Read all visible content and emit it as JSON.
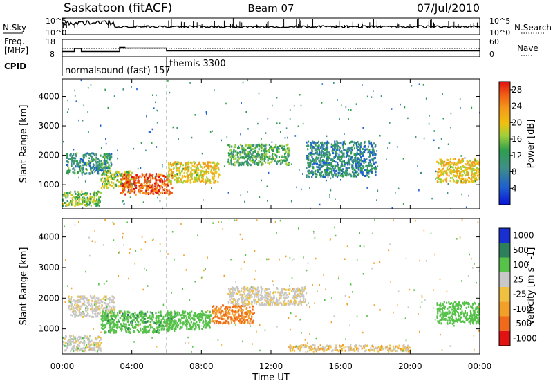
{
  "header": {
    "station": "Saskatoon (fitACF)",
    "beam": "Beam 07",
    "date": "07/Jul/2010"
  },
  "noise_panel": {
    "left_label": "N.Sky",
    "right_label": "N.Search",
    "left_ticks": [
      "10^5",
      "10^0"
    ],
    "right_ticks": [
      "10^5",
      "10^0"
    ]
  },
  "freq_panel": {
    "left_label_line1": "Freq.",
    "left_label_line2": "[MHz]",
    "right_label": "Nave",
    "left_ticks": [
      "18",
      "8"
    ],
    "right_ticks": [
      "60",
      "0"
    ],
    "freq_steps": [
      {
        "t": 0.0,
        "mhz": 11.0
      },
      {
        "t": 0.7,
        "mhz": 12.8
      },
      {
        "t": 1.1,
        "mhz": 11.0
      },
      {
        "t": 3.3,
        "mhz": 13.4
      },
      {
        "t": 3.6,
        "mhz": 13.0
      },
      {
        "t": 6.0,
        "mhz": 11.4
      },
      {
        "t": 24.0,
        "mhz": 11.4
      }
    ]
  },
  "cpid": {
    "label": "CPID",
    "programs": [
      {
        "name": "normalsound (fast) 157",
        "start_hour": 0
      },
      {
        "name": "themis 3300",
        "start_hour": 6
      }
    ]
  },
  "time_axis": {
    "label": "Time UT",
    "ticks": [
      "00:00",
      "04:00",
      "08:00",
      "12:00",
      "16:00",
      "20:00",
      "00:00"
    ],
    "range_hours": [
      0,
      24
    ]
  },
  "chart_data": [
    {
      "type": "heatmap",
      "name": "power",
      "ylabel": "Slant Range [km]",
      "yticks": [
        1000,
        2000,
        3000,
        4000
      ],
      "ylim": [
        180,
        4600
      ],
      "xlim_hours": [
        0,
        24
      ],
      "colorbar": {
        "label": "Power [dB]",
        "tick_labels": [
          "4",
          "8",
          "12",
          "16",
          "20",
          "24",
          "28"
        ],
        "range": [
          0,
          30
        ]
      },
      "echo_regions": [
        {
          "t0": 0.0,
          "t1": 2.2,
          "r0": 300,
          "r1": 800,
          "db": 14
        },
        {
          "t0": 0.2,
          "t1": 2.8,
          "r0": 1400,
          "r1": 2100,
          "db": 9
        },
        {
          "t0": 2.2,
          "t1": 4.0,
          "r0": 900,
          "r1": 1500,
          "db": 15
        },
        {
          "t0": 3.3,
          "t1": 6.3,
          "r0": 700,
          "r1": 1400,
          "db": 26
        },
        {
          "t0": 6.0,
          "t1": 9.0,
          "r0": 1100,
          "r1": 1800,
          "db": 18
        },
        {
          "t0": 9.5,
          "t1": 13.0,
          "r0": 1700,
          "r1": 2400,
          "db": 11
        },
        {
          "t0": 14.0,
          "t1": 18.0,
          "r0": 1300,
          "r1": 2500,
          "db": 8
        },
        {
          "t0": 21.5,
          "t1": 24.0,
          "r0": 1100,
          "r1": 1900,
          "db": 19
        }
      ]
    },
    {
      "type": "heatmap",
      "name": "velocity",
      "ylabel": "Slant Range [km]",
      "yticks": [
        1000,
        2000,
        3000,
        4000
      ],
      "ylim": [
        180,
        4600
      ],
      "xlim_hours": [
        0,
        24
      ],
      "colorbar": {
        "label": "Velocity [m s^-1]",
        "tick_labels": [
          "1000",
          "500",
          "100",
          "25",
          "-25",
          "-100",
          "-500",
          "-1000"
        ]
      },
      "echo_regions": [
        {
          "t0": 0.0,
          "t1": 2.2,
          "r0": 300,
          "r1": 800,
          "vel": 10
        },
        {
          "t0": 0.3,
          "t1": 3.0,
          "r0": 1400,
          "r1": 2100,
          "vel": 5
        },
        {
          "t0": 2.2,
          "t1": 6.5,
          "r0": 900,
          "r1": 1600,
          "vel": 250
        },
        {
          "t0": 6.0,
          "t1": 8.5,
          "r0": 1000,
          "r1": 1600,
          "vel": 150
        },
        {
          "t0": 8.5,
          "t1": 11.0,
          "r0": 1200,
          "r1": 1800,
          "vel": -300
        },
        {
          "t0": 9.5,
          "t1": 14.0,
          "r0": 1800,
          "r1": 2400,
          "vel": 0
        },
        {
          "t0": 13.0,
          "t1": 20.0,
          "r0": 300,
          "r1": 500,
          "vel": -40
        },
        {
          "t0": 21.5,
          "t1": 24.0,
          "r0": 1200,
          "r1": 1900,
          "vel": 200
        }
      ]
    }
  ],
  "colors": {
    "power_scale": [
      "#0a14d8",
      "#1e5fcf",
      "#3f8f88",
      "#2e9e4e",
      "#9fcf3a",
      "#f0c010",
      "#f59a1a",
      "#f05a14",
      "#e01010"
    ],
    "velocity_scale": [
      "#1a2fd0",
      "#2e7f5c",
      "#56c24a",
      "#c8c8c8",
      "#f0c040",
      "#f2a02a",
      "#ef6a1a",
      "#e01212"
    ]
  }
}
